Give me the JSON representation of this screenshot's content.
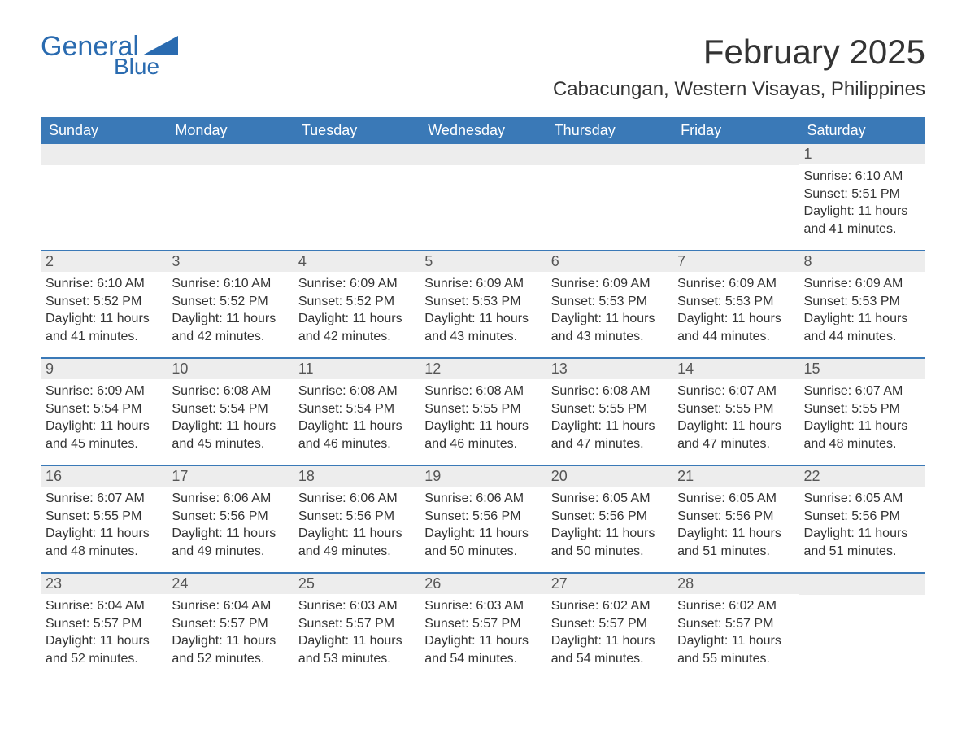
{
  "brand": {
    "part1": "General",
    "part2": "Blue",
    "color": "#2a6bb0"
  },
  "title": "February 2025",
  "location": "Cabacungan, Western Visayas, Philippines",
  "colors": {
    "header_bg": "#3a79b7",
    "header_text": "#ffffff",
    "daynum_bg": "#ededed",
    "week_border": "#3a79b7",
    "body_text": "#333333",
    "background": "#ffffff"
  },
  "day_labels": [
    "Sunday",
    "Monday",
    "Tuesday",
    "Wednesday",
    "Thursday",
    "Friday",
    "Saturday"
  ],
  "weeks": [
    [
      {
        "blank": true
      },
      {
        "blank": true
      },
      {
        "blank": true
      },
      {
        "blank": true
      },
      {
        "blank": true
      },
      {
        "blank": true
      },
      {
        "day": "1",
        "sunrise": "Sunrise: 6:10 AM",
        "sunset": "Sunset: 5:51 PM",
        "daylight1": "Daylight: 11 hours",
        "daylight2": "and 41 minutes."
      }
    ],
    [
      {
        "day": "2",
        "sunrise": "Sunrise: 6:10 AM",
        "sunset": "Sunset: 5:52 PM",
        "daylight1": "Daylight: 11 hours",
        "daylight2": "and 41 minutes."
      },
      {
        "day": "3",
        "sunrise": "Sunrise: 6:10 AM",
        "sunset": "Sunset: 5:52 PM",
        "daylight1": "Daylight: 11 hours",
        "daylight2": "and 42 minutes."
      },
      {
        "day": "4",
        "sunrise": "Sunrise: 6:09 AM",
        "sunset": "Sunset: 5:52 PM",
        "daylight1": "Daylight: 11 hours",
        "daylight2": "and 42 minutes."
      },
      {
        "day": "5",
        "sunrise": "Sunrise: 6:09 AM",
        "sunset": "Sunset: 5:53 PM",
        "daylight1": "Daylight: 11 hours",
        "daylight2": "and 43 minutes."
      },
      {
        "day": "6",
        "sunrise": "Sunrise: 6:09 AM",
        "sunset": "Sunset: 5:53 PM",
        "daylight1": "Daylight: 11 hours",
        "daylight2": "and 43 minutes."
      },
      {
        "day": "7",
        "sunrise": "Sunrise: 6:09 AM",
        "sunset": "Sunset: 5:53 PM",
        "daylight1": "Daylight: 11 hours",
        "daylight2": "and 44 minutes."
      },
      {
        "day": "8",
        "sunrise": "Sunrise: 6:09 AM",
        "sunset": "Sunset: 5:53 PM",
        "daylight1": "Daylight: 11 hours",
        "daylight2": "and 44 minutes."
      }
    ],
    [
      {
        "day": "9",
        "sunrise": "Sunrise: 6:09 AM",
        "sunset": "Sunset: 5:54 PM",
        "daylight1": "Daylight: 11 hours",
        "daylight2": "and 45 minutes."
      },
      {
        "day": "10",
        "sunrise": "Sunrise: 6:08 AM",
        "sunset": "Sunset: 5:54 PM",
        "daylight1": "Daylight: 11 hours",
        "daylight2": "and 45 minutes."
      },
      {
        "day": "11",
        "sunrise": "Sunrise: 6:08 AM",
        "sunset": "Sunset: 5:54 PM",
        "daylight1": "Daylight: 11 hours",
        "daylight2": "and 46 minutes."
      },
      {
        "day": "12",
        "sunrise": "Sunrise: 6:08 AM",
        "sunset": "Sunset: 5:55 PM",
        "daylight1": "Daylight: 11 hours",
        "daylight2": "and 46 minutes."
      },
      {
        "day": "13",
        "sunrise": "Sunrise: 6:08 AM",
        "sunset": "Sunset: 5:55 PM",
        "daylight1": "Daylight: 11 hours",
        "daylight2": "and 47 minutes."
      },
      {
        "day": "14",
        "sunrise": "Sunrise: 6:07 AM",
        "sunset": "Sunset: 5:55 PM",
        "daylight1": "Daylight: 11 hours",
        "daylight2": "and 47 minutes."
      },
      {
        "day": "15",
        "sunrise": "Sunrise: 6:07 AM",
        "sunset": "Sunset: 5:55 PM",
        "daylight1": "Daylight: 11 hours",
        "daylight2": "and 48 minutes."
      }
    ],
    [
      {
        "day": "16",
        "sunrise": "Sunrise: 6:07 AM",
        "sunset": "Sunset: 5:55 PM",
        "daylight1": "Daylight: 11 hours",
        "daylight2": "and 48 minutes."
      },
      {
        "day": "17",
        "sunrise": "Sunrise: 6:06 AM",
        "sunset": "Sunset: 5:56 PM",
        "daylight1": "Daylight: 11 hours",
        "daylight2": "and 49 minutes."
      },
      {
        "day": "18",
        "sunrise": "Sunrise: 6:06 AM",
        "sunset": "Sunset: 5:56 PM",
        "daylight1": "Daylight: 11 hours",
        "daylight2": "and 49 minutes."
      },
      {
        "day": "19",
        "sunrise": "Sunrise: 6:06 AM",
        "sunset": "Sunset: 5:56 PM",
        "daylight1": "Daylight: 11 hours",
        "daylight2": "and 50 minutes."
      },
      {
        "day": "20",
        "sunrise": "Sunrise: 6:05 AM",
        "sunset": "Sunset: 5:56 PM",
        "daylight1": "Daylight: 11 hours",
        "daylight2": "and 50 minutes."
      },
      {
        "day": "21",
        "sunrise": "Sunrise: 6:05 AM",
        "sunset": "Sunset: 5:56 PM",
        "daylight1": "Daylight: 11 hours",
        "daylight2": "and 51 minutes."
      },
      {
        "day": "22",
        "sunrise": "Sunrise: 6:05 AM",
        "sunset": "Sunset: 5:56 PM",
        "daylight1": "Daylight: 11 hours",
        "daylight2": "and 51 minutes."
      }
    ],
    [
      {
        "day": "23",
        "sunrise": "Sunrise: 6:04 AM",
        "sunset": "Sunset: 5:57 PM",
        "daylight1": "Daylight: 11 hours",
        "daylight2": "and 52 minutes."
      },
      {
        "day": "24",
        "sunrise": "Sunrise: 6:04 AM",
        "sunset": "Sunset: 5:57 PM",
        "daylight1": "Daylight: 11 hours",
        "daylight2": "and 52 minutes."
      },
      {
        "day": "25",
        "sunrise": "Sunrise: 6:03 AM",
        "sunset": "Sunset: 5:57 PM",
        "daylight1": "Daylight: 11 hours",
        "daylight2": "and 53 minutes."
      },
      {
        "day": "26",
        "sunrise": "Sunrise: 6:03 AM",
        "sunset": "Sunset: 5:57 PM",
        "daylight1": "Daylight: 11 hours",
        "daylight2": "and 54 minutes."
      },
      {
        "day": "27",
        "sunrise": "Sunrise: 6:02 AM",
        "sunset": "Sunset: 5:57 PM",
        "daylight1": "Daylight: 11 hours",
        "daylight2": "and 54 minutes."
      },
      {
        "day": "28",
        "sunrise": "Sunrise: 6:02 AM",
        "sunset": "Sunset: 5:57 PM",
        "daylight1": "Daylight: 11 hours",
        "daylight2": "and 55 minutes."
      },
      {
        "blank": true
      }
    ]
  ]
}
